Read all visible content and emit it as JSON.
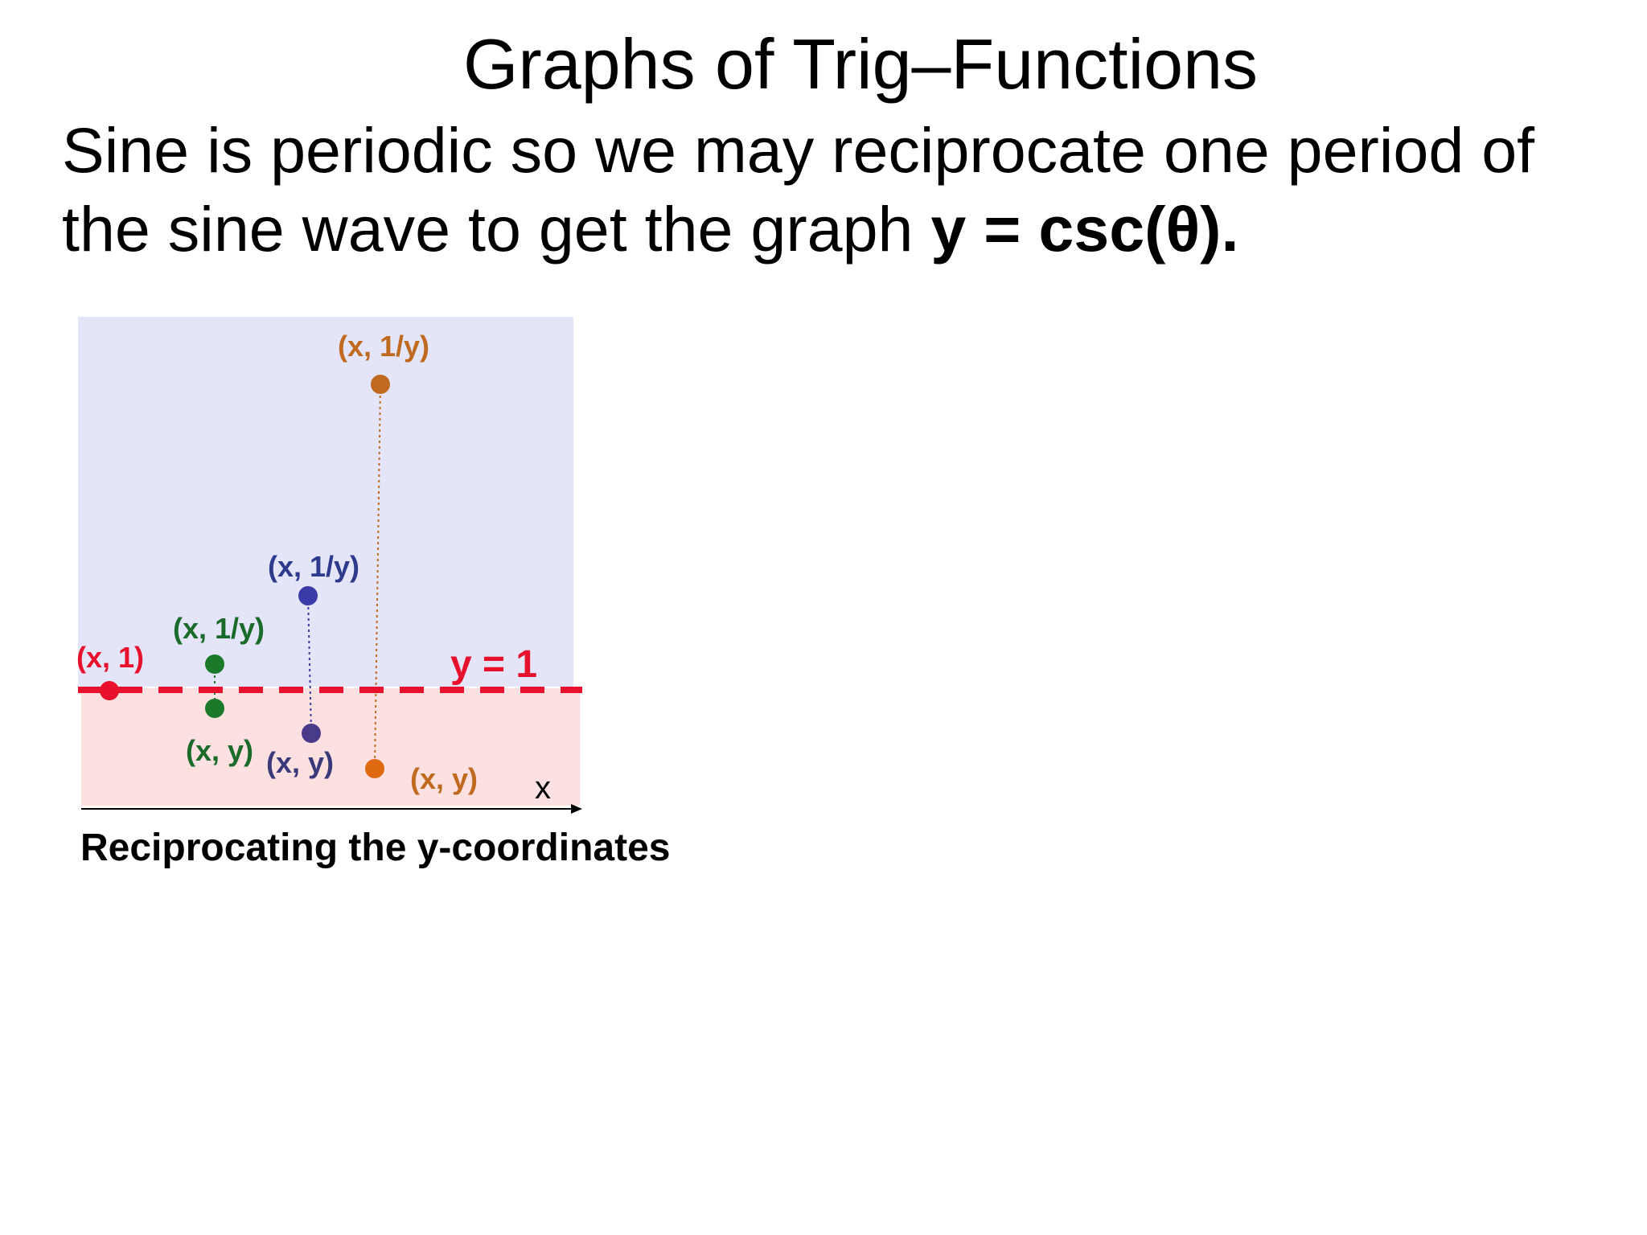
{
  "title": "Graphs of Trig–Functions",
  "body": {
    "text": "Sine is periodic so we may reciprocate one period of the sine wave to get the graph ",
    "bold": "y = csc(θ)."
  },
  "diagram": {
    "line_label": "y = 1",
    "x_axis_label": "x",
    "caption": "Reciprocating the y-coordinates",
    "colors": {
      "upper_region": "#e5e5fa",
      "lower_region": "#fde0e0",
      "red": "#e8112d",
      "green": "#1a7a2a",
      "blue": "#3a3aa8",
      "purple": "#4a3a8a",
      "orange": "#c06a20"
    },
    "points": {
      "red_label": "(x, 1)",
      "green_upper_label": "(x, 1/y)",
      "green_lower_label": "(x, y)",
      "blue_upper_label": "(x, 1/y)",
      "blue_lower_label": "(x, y)",
      "orange_upper_label": "(x, 1/y)",
      "orange_lower_label": "(x, y)"
    }
  }
}
